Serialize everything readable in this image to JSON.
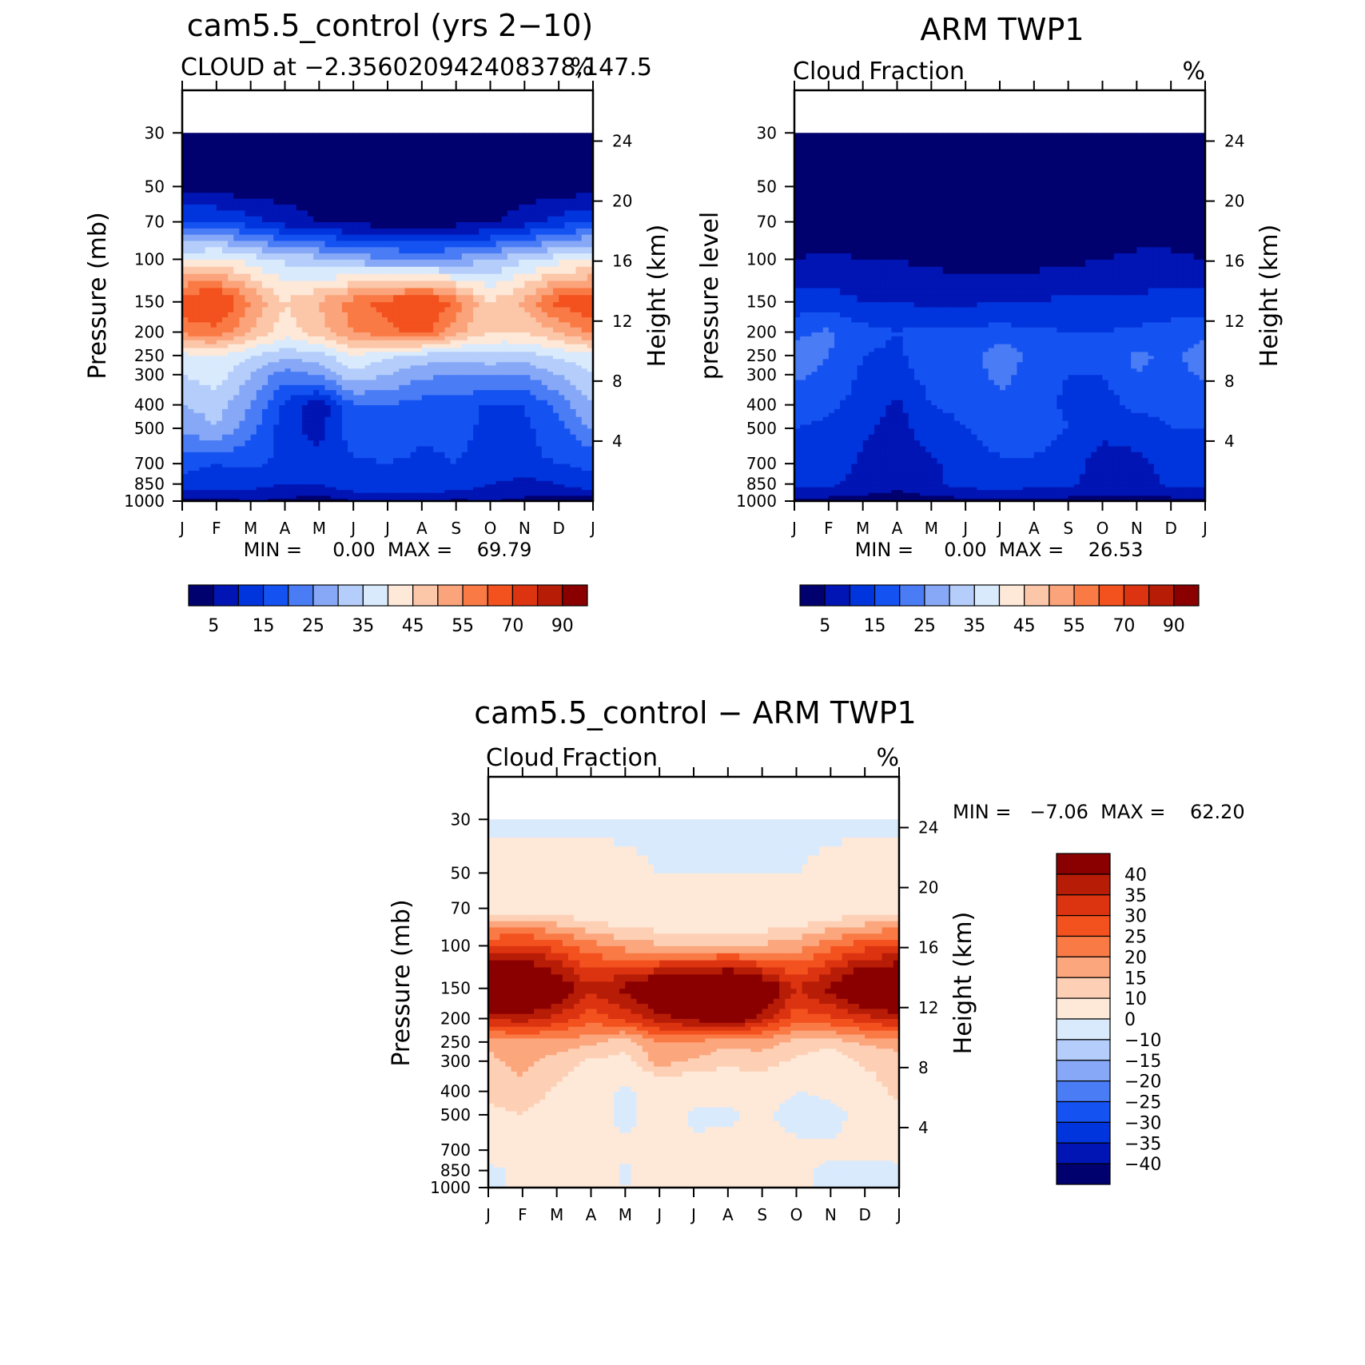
{
  "figure": {
    "panels": [
      {
        "id": "model",
        "title": "cam5.5_control (yrs 2−10)",
        "subtitle_left": "CLOUD at −2.356020942408378,147.5",
        "subtitle_right": "%",
        "ylabel": "Pressure (mb)",
        "ylabel_right": "Height (km)",
        "minmax": "MIN =     0.00  MAX =    69.79",
        "colorbar_labels": [
          "5",
          "15",
          "25",
          "35",
          "45",
          "55",
          "70",
          "90"
        ]
      },
      {
        "id": "obs",
        "title": "ARM TWP1",
        "subtitle_left": "Cloud Fraction",
        "subtitle_right": "%",
        "ylabel": "pressure level",
        "ylabel_right": "Height (km)",
        "minmax": "MIN =     0.00  MAX =    26.53",
        "colorbar_labels": [
          "5",
          "15",
          "25",
          "35",
          "45",
          "55",
          "70",
          "90"
        ]
      },
      {
        "id": "diff",
        "title": "cam5.5_control − ARM TWP1",
        "subtitle_left": "Cloud Fraction",
        "subtitle_right": "%",
        "ylabel": "Pressure (mb)",
        "ylabel_right": "Height (km)",
        "minmax": "MIN =   −7.06  MAX =    62.20",
        "colorbar_labels": [
          "40",
          "35",
          "30",
          "25",
          "20",
          "15",
          "10",
          "0",
          "−10",
          "−15",
          "−20",
          "−25",
          "−30",
          "−35",
          "−40"
        ]
      }
    ],
    "x_ticks": [
      "J",
      "F",
      "M",
      "A",
      "M",
      "J",
      "J",
      "A",
      "S",
      "O",
      "N",
      "D",
      "J"
    ],
    "pressure_ticks": [
      "30",
      "50",
      "70",
      "100",
      "150",
      "200",
      "250",
      "300",
      "400",
      "500",
      "700",
      "850",
      "1000"
    ],
    "height_ticks": [
      "4",
      "8",
      "12",
      "16",
      "20",
      "24"
    ],
    "palette_absolute": [
      "#00006e",
      "#0015b4",
      "#0034dc",
      "#1552f2",
      "#4a7cf5",
      "#86a8f6",
      "#b4cdfa",
      "#d9eafd",
      "#fee8d8",
      "#fcc6a9",
      "#fba37a",
      "#fa7a46",
      "#f3511e",
      "#dc3310",
      "#b71c06",
      "#8a0000"
    ],
    "palette_difference": [
      "#8a0000",
      "#b71c06",
      "#dc3310",
      "#f3511e",
      "#fa7a46",
      "#fca67d",
      "#fdd0b5",
      "#fee8d8",
      "#d9eafd",
      "#b4cdfa",
      "#86a8f6",
      "#4a7cf5",
      "#1552f2",
      "#0034dc",
      "#0015b4",
      "#00006e"
    ]
  },
  "chart_data": [
    {
      "type": "heatmap",
      "title": "cam5.5_control (yrs 2−10)",
      "subtitle": "CLOUD at −2.356020942408378,147.5",
      "units": "%",
      "xlabel": "",
      "ylabel": "Pressure (mb)",
      "ylabel_right": "Height (km)",
      "x": [
        "J",
        "F",
        "M",
        "A",
        "M",
        "J",
        "J",
        "A",
        "S",
        "O",
        "N",
        "D",
        "J"
      ],
      "y": [
        1000,
        850,
        700,
        500,
        400,
        300,
        250,
        200,
        150,
        100,
        70,
        50,
        30
      ],
      "ylim": [
        1000,
        20
      ],
      "y_scale": "log",
      "min": 0.0,
      "max": 69.79,
      "levels": [
        5,
        10,
        15,
        20,
        25,
        30,
        35,
        40,
        45,
        50,
        55,
        60,
        70,
        80,
        90
      ],
      "values": [
        [
          2,
          3,
          5,
          4,
          2,
          5,
          5,
          5,
          4,
          5,
          4,
          3,
          2
        ],
        [
          14,
          13,
          12,
          10,
          10,
          14,
          14,
          14,
          14,
          10,
          8,
          10,
          14
        ],
        [
          16,
          15,
          16,
          14,
          12,
          14,
          15,
          14,
          15,
          14,
          14,
          15,
          16
        ],
        [
          26,
          30,
          22,
          12,
          8,
          18,
          18,
          16,
          16,
          14,
          14,
          18,
          26
        ],
        [
          30,
          32,
          25,
          14,
          6,
          20,
          20,
          18,
          18,
          14,
          15,
          22,
          30
        ],
        [
          35,
          38,
          30,
          22,
          26,
          33,
          30,
          26,
          25,
          26,
          25,
          30,
          35
        ],
        [
          38,
          40,
          35,
          32,
          32,
          40,
          36,
          33,
          32,
          33,
          33,
          36,
          38
        ],
        [
          56,
          58,
          50,
          42,
          48,
          55,
          58,
          62,
          52,
          45,
          45,
          50,
          56
        ],
        [
          65,
          68,
          55,
          45,
          50,
          58,
          62,
          68,
          58,
          45,
          52,
          62,
          65
        ],
        [
          40,
          42,
          38,
          34,
          32,
          28,
          26,
          25,
          26,
          30,
          34,
          38,
          40
        ],
        [
          16,
          16,
          12,
          8,
          5,
          3,
          3,
          3,
          3,
          4,
          8,
          12,
          16
        ],
        [
          2,
          2,
          2,
          2,
          2,
          2,
          2,
          2,
          2,
          2,
          2,
          2,
          2
        ],
        [
          1,
          1,
          1,
          1,
          1,
          1,
          1,
          1,
          1,
          1,
          1,
          1,
          1
        ]
      ]
    },
    {
      "type": "heatmap",
      "title": "ARM TWP1",
      "subtitle": "Cloud Fraction",
      "units": "%",
      "xlabel": "",
      "ylabel": "pressure level",
      "ylabel_right": "Height (km)",
      "x": [
        "J",
        "F",
        "M",
        "A",
        "M",
        "J",
        "J",
        "A",
        "S",
        "O",
        "N",
        "D",
        "J"
      ],
      "y": [
        1000,
        850,
        700,
        500,
        400,
        300,
        250,
        200,
        150,
        100,
        70,
        50,
        30
      ],
      "ylim": [
        1000,
        20
      ],
      "y_scale": "log",
      "min": 0.0,
      "max": 26.53,
      "levels": [
        5,
        10,
        15,
        20,
        25,
        30,
        35,
        40,
        45,
        50,
        55,
        60,
        70,
        80,
        90
      ],
      "values": [
        [
          3,
          3,
          3,
          3,
          3,
          3,
          3,
          3,
          3,
          3,
          3,
          3,
          3
        ],
        [
          12,
          11,
          8,
          6,
          9,
          12,
          13,
          12,
          11,
          8,
          8,
          11,
          12
        ],
        [
          14,
          13,
          9,
          6,
          9,
          12,
          14,
          14,
          12,
          8,
          8,
          12,
          14
        ],
        [
          15,
          14,
          11,
          8,
          13,
          15,
          18,
          18,
          15,
          11,
          13,
          15,
          15
        ],
        [
          17,
          16,
          13,
          9,
          15,
          16,
          18,
          17,
          14,
          13,
          16,
          16,
          17
        ],
        [
          21,
          19,
          14,
          13,
          17,
          16,
          22,
          17,
          15,
          15,
          20,
          18,
          21
        ],
        [
          22,
          20,
          15,
          14,
          18,
          17,
          24,
          18,
          16,
          16,
          21,
          19,
          22
        ],
        [
          19,
          21,
          17,
          15,
          17,
          16,
          17,
          16,
          15,
          15,
          16,
          17,
          19
        ],
        [
          12,
          12,
          10,
          10,
          9,
          9,
          10,
          10,
          11,
          11,
          11,
          12,
          12
        ],
        [
          5,
          6,
          5,
          5,
          4,
          3,
          3,
          3,
          4,
          5,
          6,
          6,
          5
        ],
        [
          2,
          2,
          2,
          2,
          2,
          2,
          2,
          2,
          2,
          2,
          2,
          2,
          2
        ],
        [
          1,
          1,
          1,
          1,
          1,
          1,
          1,
          1,
          1,
          1,
          1,
          1,
          1
        ],
        [
          1,
          1,
          1,
          1,
          1,
          1,
          1,
          1,
          1,
          1,
          1,
          1,
          1
        ]
      ]
    },
    {
      "type": "heatmap",
      "title": "cam5.5_control − ARM TWP1",
      "subtitle": "Cloud Fraction",
      "units": "%",
      "xlabel": "",
      "ylabel": "Pressure (mb)",
      "ylabel_right": "Height (km)",
      "x": [
        "J",
        "F",
        "M",
        "A",
        "M",
        "J",
        "J",
        "A",
        "S",
        "O",
        "N",
        "D",
        "J"
      ],
      "y": [
        1000,
        850,
        700,
        500,
        400,
        300,
        250,
        200,
        150,
        100,
        70,
        50,
        30
      ],
      "ylim": [
        1000,
        20
      ],
      "y_scale": "log",
      "min": -7.06,
      "max": 62.2,
      "levels": [
        -40,
        -35,
        -30,
        -25,
        -20,
        -15,
        -10,
        0,
        10,
        15,
        20,
        25,
        30,
        35,
        40
      ],
      "values": [
        [
          -1,
          1,
          1,
          1,
          0,
          1,
          0,
          1,
          1,
          0,
          0,
          -1,
          -1
        ],
        [
          -2,
          2,
          3,
          4,
          -1,
          3,
          2,
          2,
          2,
          1,
          -1,
          -2,
          -2
        ],
        [
          3,
          3,
          4,
          5,
          1,
          3,
          1,
          2,
          2,
          2,
          1,
          2,
          3
        ],
        [
          8,
          10,
          6,
          3,
          -2,
          3,
          -1,
          -1,
          1,
          -3,
          -2,
          2,
          8
        ],
        [
          12,
          14,
          9,
          5,
          -2,
          4,
          2,
          2,
          4,
          0,
          1,
          6,
          12
        ],
        [
          14,
          16,
          13,
          9,
          8,
          17,
          14,
          12,
          13,
          9,
          6,
          11,
          14
        ],
        [
          16,
          18,
          18,
          16,
          12,
          20,
          19,
          16,
          17,
          13,
          12,
          16,
          16
        ],
        [
          36,
          37,
          33,
          27,
          31,
          38,
          41,
          46,
          37,
          27,
          29,
          33,
          36
        ],
        [
          55,
          58,
          47,
          36,
          42,
          50,
          53,
          60,
          48,
          35,
          42,
          52,
          55
        ],
        [
          30,
          32,
          28,
          22,
          18,
          16,
          14,
          14,
          16,
          18,
          24,
          28,
          30
        ],
        [
          8,
          8,
          6,
          4,
          2,
          1,
          1,
          1,
          1,
          2,
          4,
          6,
          8
        ],
        [
          2,
          2,
          2,
          2,
          1,
          0,
          0,
          0,
          0,
          0,
          1,
          2,
          2
        ],
        [
          -1,
          -1,
          -1,
          -1,
          -1,
          -1,
          -1,
          -1,
          -1,
          -1,
          -1,
          -1,
          -1
        ]
      ]
    }
  ]
}
